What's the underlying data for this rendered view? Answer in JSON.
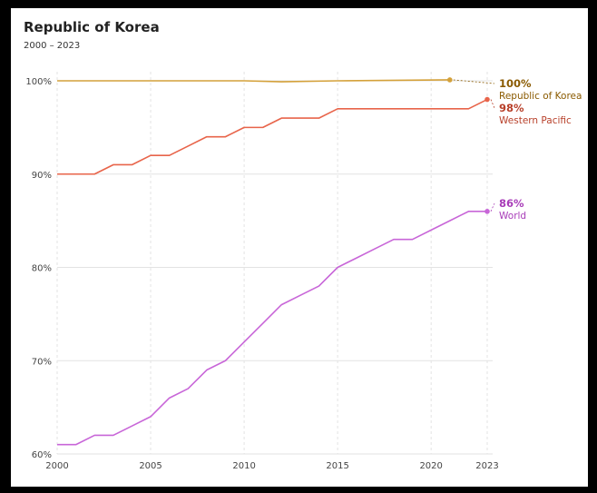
{
  "chart_data": {
    "type": "line",
    "title": "Republic of Korea",
    "subtitle": "2000 – 2023",
    "xlabel": "",
    "ylabel": "",
    "x_ticks": [
      "2000",
      "2005",
      "2010",
      "2015",
      "2020",
      "2023"
    ],
    "y_ticks": [
      "60%",
      "70%",
      "80%",
      "90%",
      "100%"
    ],
    "xlim": [
      2000,
      2023
    ],
    "ylim": [
      60,
      100
    ],
    "grid": true,
    "legend_placement": "right end labels",
    "series": [
      {
        "name": "Republic of Korea",
        "end_value": "100%",
        "color": "#d4a13a",
        "label_color": "#8a5a00",
        "x": [
          2000,
          2005,
          2010,
          2012,
          2015,
          2021
        ],
        "y": [
          100,
          100,
          100,
          99.9,
          100,
          100.1
        ]
      },
      {
        "name": "Western Pacific",
        "end_value": "98%",
        "color": "#e8644a",
        "label_color": "#b8402a",
        "x": [
          2000,
          2001,
          2002,
          2003,
          2004,
          2005,
          2006,
          2007,
          2008,
          2009,
          2010,
          2011,
          2012,
          2013,
          2014,
          2015,
          2016,
          2017,
          2018,
          2019,
          2020,
          2021,
          2022,
          2023
        ],
        "y": [
          90,
          90,
          90,
          91,
          91,
          92,
          92,
          93,
          94,
          94,
          95,
          95,
          96,
          96,
          96,
          97,
          97,
          97,
          97,
          97,
          97,
          97,
          97,
          98
        ]
      },
      {
        "name": "World",
        "end_value": "86%",
        "color": "#c866d8",
        "label_color": "#a83cb8",
        "x": [
          2000,
          2001,
          2002,
          2003,
          2004,
          2005,
          2006,
          2007,
          2008,
          2009,
          2010,
          2011,
          2012,
          2013,
          2014,
          2015,
          2016,
          2017,
          2018,
          2019,
          2020,
          2021,
          2022,
          2023
        ],
        "y": [
          61,
          61,
          62,
          62,
          63,
          64,
          66,
          67,
          69,
          70,
          72,
          74,
          76,
          77,
          78,
          80,
          81,
          82,
          83,
          83,
          84,
          85,
          86,
          86
        ]
      }
    ]
  }
}
